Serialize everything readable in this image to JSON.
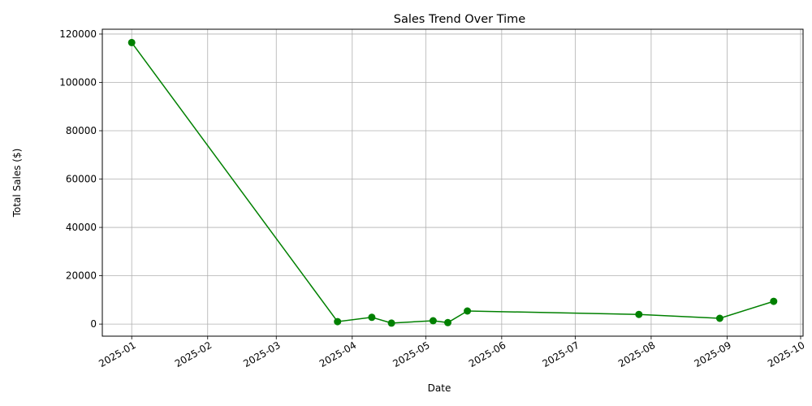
{
  "chart_data": {
    "type": "line",
    "title": "Sales Trend Over Time",
    "xlabel": "Date",
    "ylabel": "Total Sales ($)",
    "x_axis_type": "date",
    "xlim": [
      "2024-12-20",
      "2025-10-02"
    ],
    "ylim": [
      -5000,
      122000
    ],
    "x_ticks": [
      "2025-01",
      "2025-02",
      "2025-03",
      "2025-04",
      "2025-05",
      "2025-06",
      "2025-07",
      "2025-08",
      "2025-09",
      "2025-10"
    ],
    "y_ticks": [
      0,
      20000,
      40000,
      60000,
      80000,
      100000,
      120000
    ],
    "grid": true,
    "legend": "none",
    "series": [
      {
        "color": "#008000",
        "marker": "circle",
        "x": [
          "2025-01-01",
          "2025-03-26",
          "2025-04-09",
          "2025-04-17",
          "2025-05-04",
          "2025-05-10",
          "2025-05-18",
          "2025-07-27",
          "2025-08-29",
          "2025-09-20"
        ],
        "y": [
          116500,
          1000,
          2800,
          400,
          1400,
          600,
          5400,
          4000,
          2400,
          9400
        ]
      }
    ]
  }
}
